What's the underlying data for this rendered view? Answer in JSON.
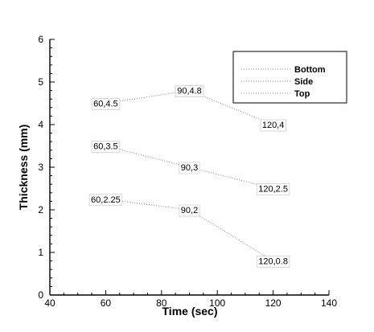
{
  "chart_data": {
    "type": "line",
    "xlabel": "Time (sec)",
    "ylabel": "Thickness (mm)",
    "xlim": [
      40,
      140
    ],
    "ylim": [
      0,
      6
    ],
    "xticks": [
      "40",
      "60",
      "80",
      "100",
      "120",
      "140"
    ],
    "yticks": [
      "0",
      "1",
      "2",
      "3",
      "4",
      "5",
      "6"
    ],
    "grid": false,
    "legend_position": "top-right",
    "series": [
      {
        "name": "Bottom",
        "x": [
          60,
          90,
          120
        ],
        "y": [
          2.25,
          2,
          0.8
        ],
        "labels": [
          "60,2.25",
          "90,2",
          "120,0.8"
        ],
        "color": "#666666"
      },
      {
        "name": "Side",
        "x": [
          60,
          90,
          120
        ],
        "y": [
          3.5,
          3,
          2.5
        ],
        "labels": [
          "60,3.5",
          "90,3",
          "120,2.5"
        ],
        "color": "#666666"
      },
      {
        "name": "Top",
        "x": [
          60,
          90,
          120
        ],
        "y": [
          4.5,
          4.8,
          4
        ],
        "labels": [
          "60,4.5",
          "90,4.8",
          "120,4"
        ],
        "color": "#666666"
      }
    ]
  }
}
